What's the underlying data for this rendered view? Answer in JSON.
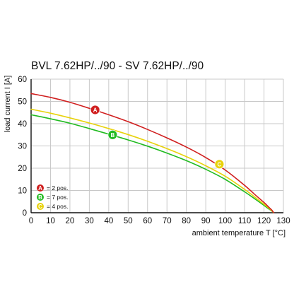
{
  "chart_data": {
    "type": "line",
    "title": "BVL 7.62HP/../90 - SV 7.62HP/../90",
    "xlabel": "ambient temperature T [°C]",
    "ylabel": "load current I [A]",
    "xlim": [
      0,
      130
    ],
    "ylim": [
      0,
      60
    ],
    "xticks": [
      0,
      10,
      20,
      30,
      40,
      50,
      60,
      70,
      80,
      90,
      100,
      110,
      120,
      130
    ],
    "yticks": [
      0,
      10,
      20,
      30,
      40,
      50,
      60
    ],
    "grid": true,
    "legend_position": "bottom-left",
    "series": [
      {
        "name": "= 2 pos.",
        "marker_letter": "A",
        "color": "#d01f1f",
        "x": [
          0,
          10,
          20,
          30,
          40,
          50,
          60,
          70,
          80,
          90,
          100,
          110,
          115,
          120,
          122,
          124,
          125
        ],
        "y": [
          53.5,
          51.8,
          49.6,
          46.9,
          44.0,
          40.9,
          37.4,
          33.6,
          29.5,
          24.8,
          19.2,
          12.3,
          8.4,
          4.6,
          2.9,
          1.2,
          0
        ],
        "marker_at": [
          33,
          46.2
        ]
      },
      {
        "name": "= 7 pos.",
        "marker_letter": "B",
        "color": "#22bb22",
        "x": [
          0,
          10,
          20,
          30,
          40,
          50,
          60,
          70,
          80,
          90,
          100,
          110,
          115,
          120,
          122,
          124,
          125
        ],
        "y": [
          44.0,
          42.2,
          40.2,
          37.8,
          35.3,
          32.7,
          29.9,
          26.8,
          23.4,
          19.5,
          15.0,
          9.4,
          6.4,
          3.3,
          2.0,
          0.8,
          0
        ],
        "marker_at": [
          42,
          35.0
        ]
      },
      {
        "name": "= 4 pos.",
        "marker_letter": "C",
        "color": "#e8d20c",
        "x": [
          0,
          10,
          20,
          30,
          40,
          50,
          60,
          70,
          80,
          90,
          100,
          110,
          115,
          120,
          122,
          124,
          125
        ],
        "y": [
          46.5,
          44.7,
          42.6,
          40.3,
          37.8,
          35.1,
          32.1,
          28.8,
          25.2,
          21.1,
          16.4,
          10.5,
          7.2,
          3.8,
          2.4,
          0.9,
          0
        ],
        "marker_at": [
          97,
          21.8
        ]
      }
    ]
  }
}
